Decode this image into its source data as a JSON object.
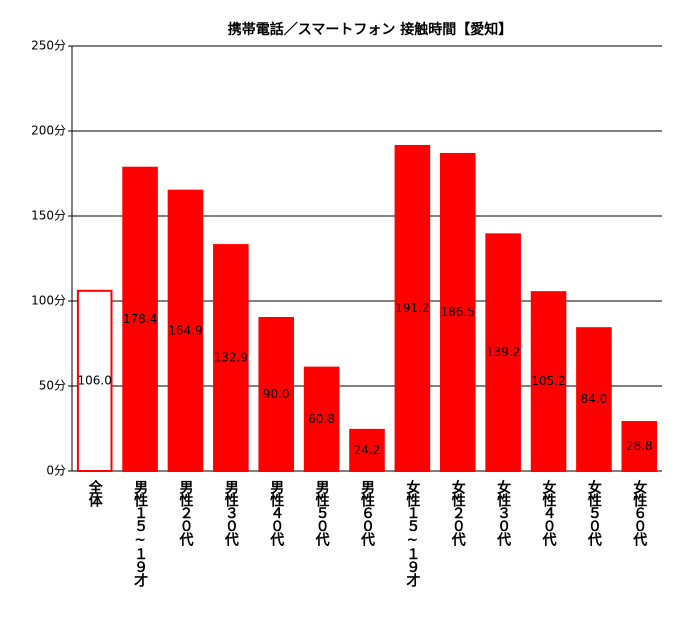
{
  "chart_data": {
    "type": "bar",
    "title": "携帯電話／スマートフォン 接触時間【愛知】",
    "categories": [
      "全体",
      "男性１５~１９才",
      "男性２０代",
      "男性３０代",
      "男性４０代",
      "男性５０代",
      "男性６０代",
      "女性１５~１９才",
      "女性２０代",
      "女性３０代",
      "女性４０代",
      "女性５０代",
      "女性６０代"
    ],
    "values": [
      106.0,
      178.4,
      164.9,
      132.9,
      90.0,
      60.8,
      24.2,
      191.2,
      186.5,
      139.2,
      105.2,
      84.0,
      28.8
    ],
    "value_labels": [
      "106.0",
      "178.4",
      "164.9",
      "132.9",
      "90.0",
      "60.8",
      "24.2",
      "191.2",
      "186.5",
      "139.2",
      "105.2",
      "84.0",
      "28.8"
    ],
    "colors": [
      "#ffffff",
      "#ff0000",
      "#ff0000",
      "#ff0000",
      "#ff0000",
      "#ff0000",
      "#ff0000",
      "#ff0000",
      "#ff0000",
      "#ff0000",
      "#ff0000",
      "#ff0000",
      "#ff0000"
    ],
    "edgecolor": "#ff0000",
    "ylim": [
      0,
      250
    ],
    "yticks": [
      {
        "value": 0,
        "label": "0分"
      },
      {
        "value": 50,
        "label": "50分"
      },
      {
        "value": 100,
        "label": "100分"
      },
      {
        "value": 150,
        "label": "150分"
      },
      {
        "value": 200,
        "label": "200分"
      },
      {
        "value": 250,
        "label": "250分"
      }
    ],
    "grid": true
  }
}
